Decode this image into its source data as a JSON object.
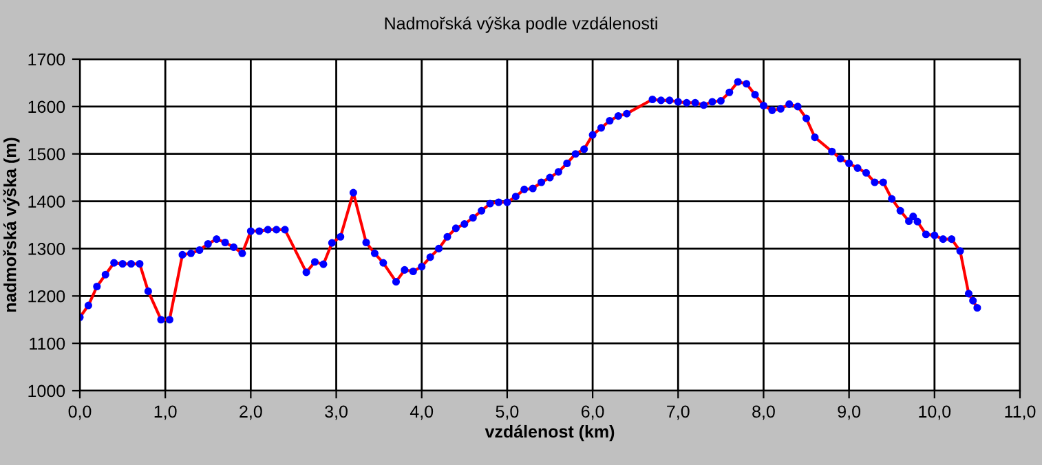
{
  "chart_data": {
    "type": "line",
    "title": "Nadmořská výška podle vzdálenosti",
    "xlabel": "vzdálenost (km)",
    "ylabel": "nadmořská výška (m)",
    "x": [
      0,
      0.1,
      0.2,
      0.3,
      0.4,
      0.5,
      0.6,
      0.7,
      0.8,
      0.95,
      1.05,
      1.2,
      1.3,
      1.4,
      1.5,
      1.6,
      1.7,
      1.8,
      1.9,
      2.0,
      2.1,
      2.2,
      2.3,
      2.4,
      2.65,
      2.75,
      2.85,
      2.95,
      3.05,
      3.2,
      3.35,
      3.45,
      3.55,
      3.7,
      3.8,
      3.9,
      4.0,
      4.1,
      4.2,
      4.3,
      4.4,
      4.5,
      4.6,
      4.7,
      4.8,
      4.9,
      5.0,
      5.1,
      5.2,
      5.3,
      5.4,
      5.5,
      5.6,
      5.7,
      5.8,
      5.9,
      6.0,
      6.1,
      6.2,
      6.3,
      6.4,
      6.7,
      6.8,
      6.9,
      7.0,
      7.1,
      7.2,
      7.3,
      7.4,
      7.5,
      7.6,
      7.7,
      7.8,
      7.9,
      8.0,
      8.1,
      8.2,
      8.3,
      8.4,
      8.5,
      8.6,
      8.8,
      8.9,
      9.0,
      9.1,
      9.2,
      9.3,
      9.4,
      9.5,
      9.6,
      9.7,
      9.75,
      9.8,
      9.9,
      10.0,
      10.1,
      10.2,
      10.3,
      10.4,
      10.45,
      10.5
    ],
    "series": [
      {
        "color": "#ff0000",
        "values": [
          1155,
          1180,
          1220,
          1245,
          1270,
          1268,
          1268,
          1268,
          1210,
          1150,
          1150,
          1287,
          1290,
          1297,
          1310,
          1320,
          1313,
          1303,
          1290,
          1337,
          1337,
          1340,
          1340,
          1340,
          1250,
          1272,
          1267,
          1312,
          1325,
          1418,
          1313,
          1290,
          1270,
          1230,
          1255,
          1252,
          1262,
          1282,
          1300,
          1325,
          1343,
          1352,
          1365,
          1380,
          1395,
          1398,
          1398,
          1410,
          1425,
          1427,
          1440,
          1450,
          1462,
          1480,
          1500,
          1510,
          1540,
          1555,
          1570,
          1580,
          1585,
          1615,
          1613,
          1613,
          1610,
          1608,
          1608,
          1603,
          1610,
          1612,
          1630,
          1652,
          1648,
          1625,
          1602,
          1592,
          1595,
          1605,
          1600,
          1575,
          1535,
          1505,
          1490,
          1480,
          1470,
          1460,
          1440,
          1440,
          1405,
          1380,
          1358,
          1368,
          1357,
          1330,
          1328,
          1320,
          1320,
          1295,
          1205,
          1190,
          1175
        ]
      }
    ],
    "marker": "circle",
    "line_style": "solid",
    "grid": true,
    "xlim": [
      0,
      11
    ],
    "xticks": [
      {
        "value": 0,
        "label": "0,0"
      },
      {
        "value": 1,
        "label": "1,0"
      },
      {
        "value": 2,
        "label": "2,0"
      },
      {
        "value": 3,
        "label": "3,0"
      },
      {
        "value": 4,
        "label": "4,0"
      },
      {
        "value": 5,
        "label": "5,0"
      },
      {
        "value": 6,
        "label": "6,0"
      },
      {
        "value": 7,
        "label": "7,0"
      },
      {
        "value": 8,
        "label": "8,0"
      },
      {
        "value": 9,
        "label": "9,0"
      },
      {
        "value": 10,
        "label": "10,0"
      },
      {
        "value": 11,
        "label": "11,0"
      }
    ],
    "ylim": [
      1000,
      1700
    ],
    "yticks": [
      1000,
      1100,
      1200,
      1300,
      1400,
      1500,
      1600,
      1700
    ]
  }
}
